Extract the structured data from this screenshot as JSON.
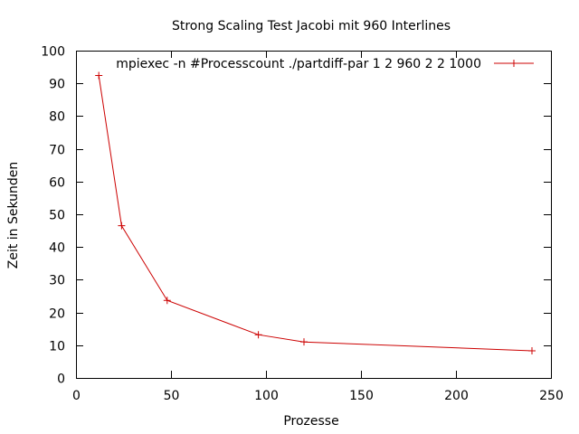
{
  "chart_data": {
    "type": "line",
    "title": "Strong Scaling Test Jacobi mit 960 Interlines",
    "xlabel": "Prozesse",
    "ylabel": "Zeit in Sekunden",
    "xlim": [
      0,
      250
    ],
    "ylim": [
      0,
      100
    ],
    "xticks": [
      "0",
      "50",
      "100",
      "150",
      "200",
      "250"
    ],
    "yticks": [
      "0",
      "10",
      "20",
      "30",
      "40",
      "50",
      "60",
      "70",
      "80",
      "90",
      "100"
    ],
    "grid": false,
    "legend_position": "top-right",
    "series": [
      {
        "name": "mpiexec -n #Processcount ./partdiff-par 1 2 960 2 2 1000",
        "color": "#cc0000",
        "marker": "plus",
        "x": [
          12,
          24,
          48,
          96,
          120,
          240
        ],
        "y": [
          92.4,
          46.5,
          23.7,
          13.2,
          11.0,
          8.3
        ]
      }
    ]
  }
}
